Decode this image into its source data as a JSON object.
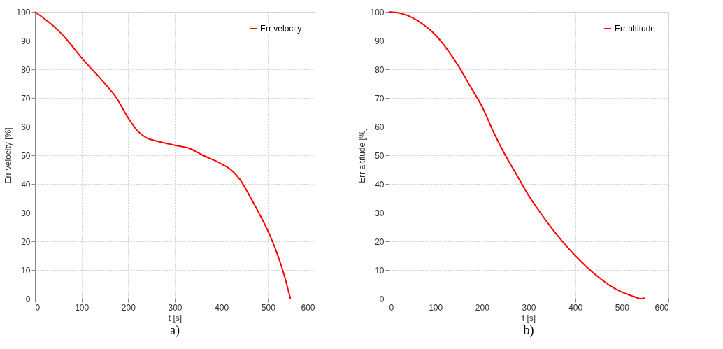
{
  "chart_data": [
    {
      "type": "line",
      "xlabel": "t [s]",
      "ylabel": "Err velocity [%]",
      "annotations": [
        "a)"
      ],
      "legend": "top right",
      "grid": true,
      "xlim": [
        0,
        600
      ],
      "xticks": [
        0,
        100,
        200,
        300,
        400,
        500,
        600
      ],
      "ylim": [
        0,
        100
      ],
      "yticks": [
        0,
        10,
        20,
        30,
        40,
        50,
        60,
        70,
        80,
        90,
        100
      ],
      "series": [
        {
          "name": "Err velocity",
          "color": "#ff0000",
          "x": [
            0,
            25,
            50,
            70,
            100,
            150,
            175,
            200,
            220,
            240,
            260,
            300,
            330,
            360,
            400,
            420,
            440,
            460,
            480,
            500,
            520,
            535,
            548
          ],
          "values": [
            100,
            97,
            93.5,
            90,
            84,
            75,
            70,
            63,
            58.5,
            56,
            55,
            53.5,
            52.5,
            50,
            47,
            45,
            41.5,
            36,
            30,
            23.5,
            15.5,
            8,
            0
          ]
        }
      ]
    },
    {
      "type": "line",
      "xlabel": "t [s]",
      "ylabel": "Err altitude [%]",
      "annotations": [
        "b)"
      ],
      "legend": "top right",
      "grid": true,
      "xlim": [
        0,
        600
      ],
      "xticks": [
        0,
        100,
        200,
        300,
        400,
        500,
        600
      ],
      "ylim": [
        0,
        100
      ],
      "yticks": [
        0,
        10,
        20,
        30,
        40,
        50,
        60,
        70,
        80,
        90,
        100
      ],
      "series": [
        {
          "name": "Err altitude",
          "color": "#ff0000",
          "x": [
            0,
            25,
            50,
            75,
            100,
            125,
            150,
            175,
            200,
            225,
            250,
            275,
            300,
            325,
            350,
            375,
            400,
            425,
            450,
            475,
            500,
            525,
            540,
            550
          ],
          "values": [
            100,
            99.5,
            98,
            95.5,
            92,
            87,
            81,
            74,
            67,
            58,
            50,
            43,
            36,
            30,
            24.5,
            19.5,
            15,
            11,
            7.5,
            4.5,
            2.3,
            0.8,
            0,
            0.2
          ]
        }
      ]
    }
  ]
}
